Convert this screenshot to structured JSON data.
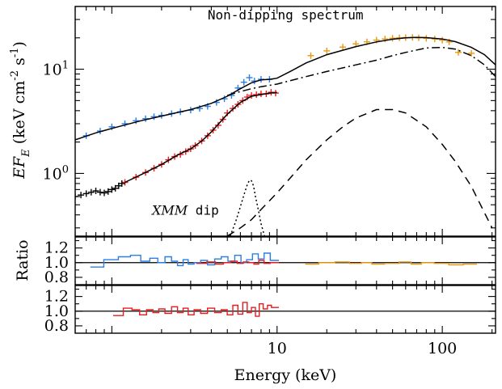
{
  "chart_data": {
    "type": "line",
    "xlabel": "Energy (keV)",
    "x_scale": "log",
    "xlim": [
      0.6,
      210
    ],
    "x_ticks": [
      {
        "value": 10,
        "label": "10"
      },
      {
        "value": 100,
        "label": "100"
      }
    ],
    "panels": [
      {
        "id": "spectrum",
        "ylabel_parts": [
          "EF",
          "E",
          " (keV cm",
          "-2",
          " s",
          "-1",
          ")"
        ],
        "y_scale": "log",
        "ylim": [
          0.25,
          40
        ],
        "y_ticks": [
          {
            "value": 1,
            "label_base": "10",
            "label_exp": "0"
          },
          {
            "value": 10,
            "label_base": "10",
            "label_exp": "1"
          }
        ],
        "annotations": [
          {
            "text": "Non-dipping spectrum",
            "italic_prefix": "",
            "at_x": 3.8,
            "at_y": 30
          },
          {
            "text": " dip",
            "italic_prefix": "XMM",
            "at_x": 1.75,
            "at_y": 0.4
          }
        ],
        "series": [
          {
            "role": "non-dip-xmm-data",
            "color": "#2b7fe6",
            "style": "errorbars",
            "x": [
              0.7,
              0.85,
              1.0,
              1.2,
              1.4,
              1.6,
              1.8,
              2.0,
              2.3,
              2.6,
              3.0,
              3.4,
              3.8,
              4.3,
              4.8,
              5.3,
              5.8,
              6.3,
              6.8,
              7.3,
              8.0,
              9.0
            ],
            "y": [
              2.3,
              2.55,
              2.8,
              3.0,
              3.2,
              3.35,
              3.5,
              3.6,
              3.75,
              3.9,
              4.05,
              4.2,
              4.4,
              4.8,
              5.2,
              5.6,
              6.6,
              7.5,
              8.3,
              7.7,
              8.0,
              8.0
            ]
          },
          {
            "role": "non-dip-nustar-data",
            "color": "#e8990f",
            "style": "errorbars",
            "x": [
              16,
              20,
              25,
              30,
              35,
              40,
              45,
              50,
              55,
              60,
              66,
              72,
              80,
              90,
              100,
              110,
              125,
              150
            ],
            "y": [
              13.5,
              15.0,
              16.3,
              17.5,
              18.3,
              19.0,
              19.5,
              19.8,
              20.0,
              20.1,
              20.2,
              20.0,
              19.8,
              19.5,
              19.0,
              18.3,
              14.5,
              14.2
            ]
          },
          {
            "role": "dip-data",
            "color": "#e81c1c",
            "style": "errorbars",
            "x": [
              1.2,
              1.4,
              1.6,
              1.8,
              2.0,
              2.2,
              2.4,
              2.6,
              2.8,
              3.0,
              3.2,
              3.5,
              3.8,
              4.1,
              4.4,
              4.7,
              5.0,
              5.4,
              5.8,
              6.2,
              6.6,
              7.0,
              7.5,
              8.0,
              8.6,
              9.2,
              9.8
            ],
            "y": [
              0.82,
              0.92,
              1.02,
              1.12,
              1.22,
              1.35,
              1.45,
              1.52,
              1.62,
              1.72,
              1.85,
              2.05,
              2.3,
              2.6,
              2.9,
              3.3,
              3.8,
              4.2,
              4.6,
              5.0,
              5.4,
              5.6,
              5.7,
              5.8,
              5.8,
              6.0,
              5.9
            ]
          },
          {
            "role": "dip-low-energy-black",
            "color": "#000000",
            "style": "errorbars",
            "x": [
              0.6,
              0.65,
              0.7,
              0.75,
              0.8,
              0.85,
              0.9,
              0.95,
              1.0,
              1.05,
              1.1,
              1.15
            ],
            "y": [
              0.6,
              0.62,
              0.64,
              0.66,
              0.68,
              0.66,
              0.65,
              0.67,
              0.7,
              0.72,
              0.76,
              0.8
            ]
          },
          {
            "role": "non-dip-model",
            "color": "#000000",
            "style": "solid",
            "x": [
              0.6,
              0.8,
              1.0,
              1.5,
              2.0,
              3.0,
              4.0,
              5.0,
              6.0,
              7.0,
              8.0,
              9.0,
              10,
              12,
              15,
              20,
              30,
              40,
              50,
              60,
              70,
              80,
              100,
              120,
              150,
              180,
              210
            ],
            "y": [
              2.1,
              2.45,
              2.7,
              3.2,
              3.55,
              4.1,
              4.7,
              5.5,
              6.5,
              7.4,
              7.9,
              8.0,
              8.2,
              9.5,
              11.5,
              13.8,
              16.5,
              18.3,
              19.4,
              20.0,
              20.2,
              20.1,
              19.5,
              18.4,
              16.2,
              13.8,
              11.0
            ]
          },
          {
            "role": "dip-model",
            "color": "#000000",
            "style": "solid",
            "x": [
              1.2,
              1.5,
              2.0,
              2.5,
              3.0,
              3.5,
              4.0,
              5.0,
              6.0,
              7.0,
              8.0,
              9.0,
              10
            ],
            "y": [
              0.82,
              0.97,
              1.22,
              1.5,
              1.72,
              2.05,
              2.5,
              3.7,
              4.8,
              5.5,
              5.7,
              5.9,
              6.0
            ]
          },
          {
            "role": "dash-dot-component",
            "color": "#000000",
            "style": "dashdot",
            "x": [
              5,
              6,
              7,
              8,
              9,
              10,
              15,
              20,
              30,
              40,
              50,
              60,
              80,
              100,
              120,
              150,
              180,
              210
            ],
            "y": [
              5.6,
              6.1,
              6.5,
              6.8,
              7.0,
              7.2,
              8.5,
              9.5,
              11.0,
              12.2,
              13.5,
              14.5,
              16.0,
              16.2,
              15.6,
              13.5,
              11.0,
              8.5
            ]
          },
          {
            "role": "dashed-component",
            "color": "#000000",
            "style": "dashed",
            "x": [
              5.0,
              6.0,
              7.0,
              8.0,
              10,
              12,
              15,
              20,
              25,
              30,
              40,
              50,
              60,
              80,
              100,
              120,
              150,
              180,
              200
            ],
            "y": [
              0.25,
              0.3,
              0.36,
              0.45,
              0.65,
              0.9,
              1.35,
              2.1,
              2.8,
              3.4,
              4.1,
              4.1,
              3.8,
              2.8,
              1.9,
              1.3,
              0.75,
              0.42,
              0.3
            ]
          },
          {
            "role": "dotted-line-component",
            "color": "#000000",
            "style": "dotted",
            "x": [
              5.2,
              5.6,
              6.0,
              6.3,
              6.6,
              6.8,
              7.0,
              7.2,
              7.4,
              7.7,
              8.0,
              8.4
            ],
            "y": [
              0.25,
              0.34,
              0.48,
              0.62,
              0.78,
              0.86,
              0.85,
              0.76,
              0.6,
              0.45,
              0.33,
              0.25
            ]
          }
        ]
      },
      {
        "id": "ratio-non-dip",
        "ylabel": "Ratio",
        "y_scale": "linear",
        "ylim": [
          0.7,
          1.35
        ],
        "y_ticks": [
          {
            "value": 0.8,
            "label": "0.8"
          },
          {
            "value": 1.0,
            "label": "1.0"
          },
          {
            "value": 1.2,
            "label": "1.2"
          }
        ],
        "reference_line": 1.0,
        "series": [
          {
            "color": "#2b7fe6",
            "style": "step",
            "x": [
              0.8,
              1.0,
              1.2,
              1.4,
              1.6,
              1.8,
              2.0,
              2.2,
              2.4,
              2.6,
              2.8,
              3.0,
              3.3,
              3.6,
              4.0,
              4.4,
              4.8,
              5.3,
              5.8,
              6.3,
              6.8,
              7.4,
              8.0,
              8.7,
              9.5
            ],
            "y": [
              0.94,
              1.04,
              1.08,
              1.1,
              1.02,
              1.06,
              1.0,
              1.08,
              1.02,
              0.96,
              1.04,
              0.98,
              1.0,
              1.03,
              0.97,
              1.05,
              1.08,
              1.02,
              1.1,
              1.0,
              1.04,
              1.12,
              1.05,
              1.13,
              1.03
            ]
          },
          {
            "color": "#e81c1c",
            "style": "step",
            "x": [
              3.5,
              4.0,
              4.5,
              5.0,
              5.5,
              6.0,
              6.5,
              7.0,
              7.5,
              8.0,
              8.7,
              9.5
            ],
            "y": [
              0.99,
              1.01,
              0.98,
              1.0,
              1.02,
              0.99,
              1.01,
              1.0,
              0.98,
              1.03,
              0.99,
              1.0
            ]
          },
          {
            "color": "#e8990f",
            "style": "step",
            "x": [
              16,
              20,
              25,
              30,
              35,
              40,
              50,
              60,
              70,
              80,
              100,
              120,
              150
            ],
            "y": [
              0.98,
              1.0,
              1.01,
              0.99,
              1.0,
              0.98,
              0.99,
              1.01,
              0.98,
              1.0,
              0.99,
              0.97,
              0.98
            ]
          }
        ]
      },
      {
        "id": "ratio-dip",
        "ylabel": "Ratio",
        "y_scale": "linear",
        "ylim": [
          0.7,
          1.35
        ],
        "y_ticks": [
          {
            "value": 0.8,
            "label": "0.8"
          },
          {
            "value": 1.0,
            "label": "1.0"
          },
          {
            "value": 1.2,
            "label": "1.2"
          }
        ],
        "reference_line": 1.0,
        "series": [
          {
            "color": "#e81c1c",
            "style": "step",
            "x": [
              1.1,
              1.25,
              1.4,
              1.55,
              1.7,
              1.85,
              2.0,
              2.2,
              2.4,
              2.6,
              2.8,
              3.0,
              3.3,
              3.6,
              4.0,
              4.4,
              4.8,
              5.2,
              5.6,
              6.0,
              6.4,
              6.8,
              7.2,
              7.6,
              8.0,
              8.5,
              9.0,
              9.5
            ],
            "y": [
              0.94,
              1.04,
              1.02,
              0.95,
              1.02,
              0.98,
              1.03,
              0.97,
              1.06,
              0.98,
              1.04,
              0.95,
              1.02,
              0.97,
              1.04,
              0.98,
              1.02,
              0.95,
              1.08,
              0.96,
              1.12,
              0.98,
              1.05,
              0.93,
              1.1,
              1.03,
              1.08,
              1.05
            ]
          }
        ]
      }
    ]
  }
}
